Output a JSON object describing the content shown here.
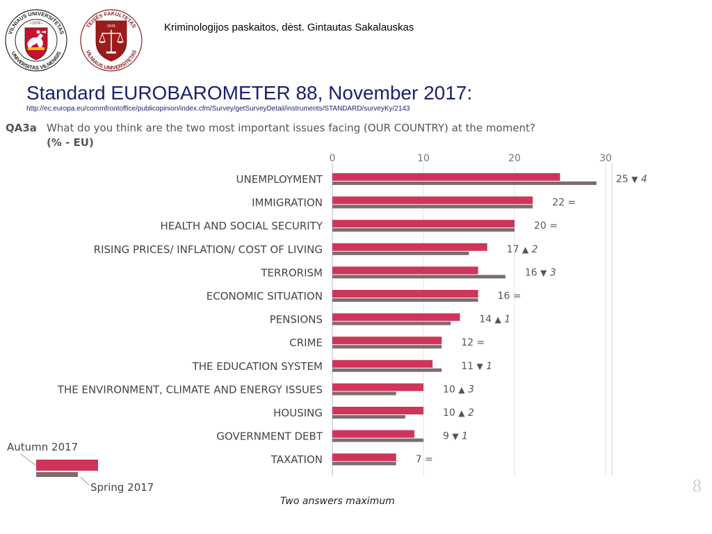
{
  "header": {
    "course": "Kriminologijos paskaitos, dėst. Gintautas Sakalauskas",
    "title": "Standard EUROBAROMETER 88, November 2017:",
    "url": "http://ec.europa.eu/commfrontoffice/publicopinion/index.cfm/Survey/getSurveyDetail/instruments/STANDARD/surveyKy/2143"
  },
  "logos": {
    "university": {
      "top": "VILNIAUS UNIVERSITETAS",
      "bottom": "UNIVERSITAS VILNENSIS",
      "year": "• 1579 •"
    },
    "faculty": {
      "top": "TEISĖS FAKULTETAS",
      "bottom": "VILNIAUS UNIVERSITETAS",
      "year": "·1641·"
    }
  },
  "question": {
    "code": "QA3a",
    "text": "What do you think are the two most important issues facing (OUR COUNTRY) at the moment?",
    "unit": "(% - EU)"
  },
  "chart_data": {
    "type": "bar",
    "orientation": "horizontal",
    "xlim": [
      0,
      30
    ],
    "xticks": [
      "0",
      "10",
      "20",
      "30"
    ],
    "grid": true,
    "categories": [
      "UNEMPLOYMENT",
      "IMMIGRATION",
      "HEALTH AND SOCIAL SECURITY",
      "RISING PRICES/ INFLATION/ COST OF LIVING",
      "TERRORISM",
      "ECONOMIC SITUATION",
      "PENSIONS",
      "CRIME",
      "THE EDUCATION SYSTEM",
      "THE ENVIRONMENT, CLIMATE AND ENERGY ISSUES",
      "HOUSING",
      "GOVERNMENT DEBT",
      "TAXATION"
    ],
    "series": [
      {
        "name": "Autumn 2017",
        "color": "#d0345a",
        "values": [
          25,
          22,
          20,
          17,
          16,
          16,
          14,
          12,
          11,
          10,
          10,
          9,
          7
        ]
      },
      {
        "name": "Spring 2017",
        "color": "#7d6b70",
        "values": [
          29,
          22,
          20,
          15,
          19,
          16,
          13,
          12,
          12,
          7,
          8,
          10,
          7
        ]
      }
    ],
    "annotations": [
      {
        "value": "25",
        "change": "▼",
        "diff": "4"
      },
      {
        "value": "22",
        "change": "=",
        "diff": ""
      },
      {
        "value": "20",
        "change": "=",
        "diff": ""
      },
      {
        "value": "17",
        "change": "▲",
        "diff": "2"
      },
      {
        "value": "16",
        "change": "▼",
        "diff": "3"
      },
      {
        "value": "16",
        "change": "=",
        "diff": ""
      },
      {
        "value": "14",
        "change": "▲",
        "diff": "1"
      },
      {
        "value": "12",
        "change": "=",
        "diff": ""
      },
      {
        "value": "11",
        "change": "▼",
        "diff": "1"
      },
      {
        "value": "10",
        "change": "▲",
        "diff": "3"
      },
      {
        "value": "10",
        "change": "▲",
        "diff": "2"
      },
      {
        "value": "9",
        "change": "▼",
        "diff": "1"
      },
      {
        "value": "7",
        "change": "=",
        "diff": ""
      }
    ],
    "legend": {
      "autumn": "Autumn 2017",
      "spring": "Spring 2017",
      "placement": "bottom-left"
    }
  },
  "footer": {
    "note": "Two answers maximum",
    "page": "8"
  }
}
